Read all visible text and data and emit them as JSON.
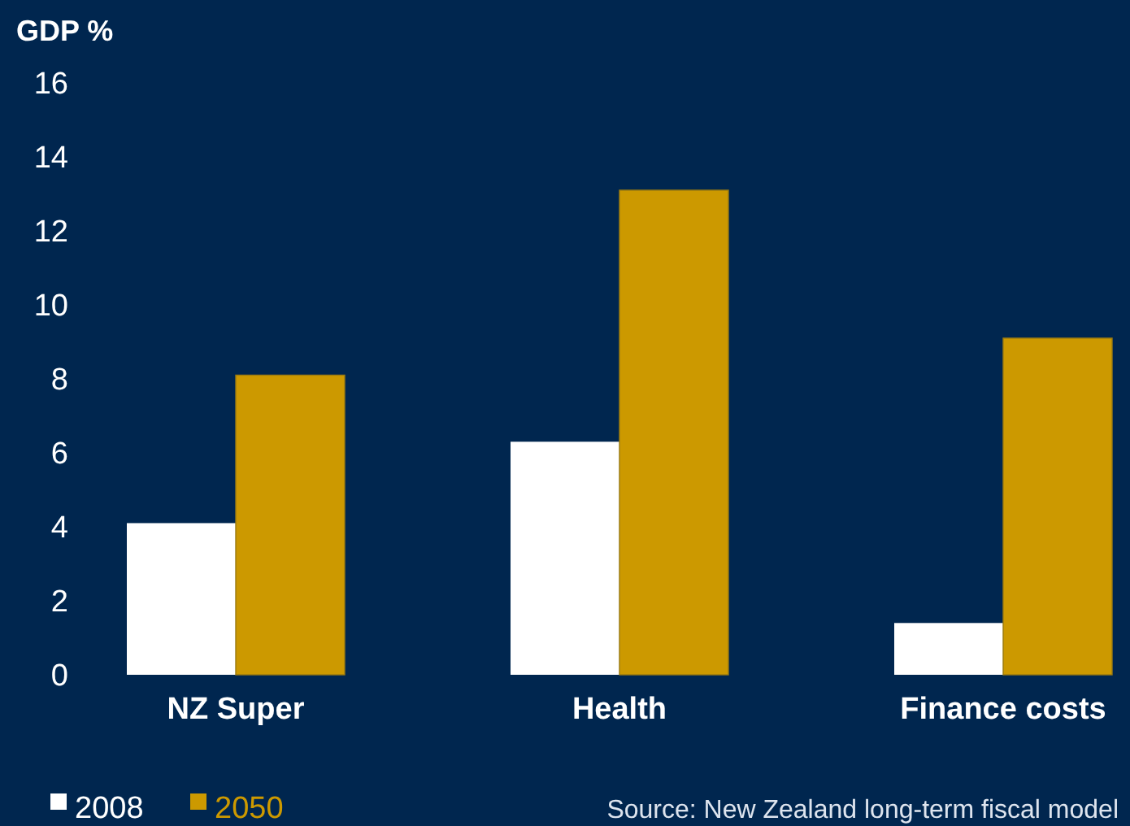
{
  "chart_data": {
    "type": "bar",
    "ylabel": "GDP %",
    "categories": [
      "NZ Super",
      "Health",
      "Finance costs"
    ],
    "series": [
      {
        "name": "2008",
        "color": "#ffffff",
        "values": [
          4.1,
          6.3,
          1.4
        ]
      },
      {
        "name": "2050",
        "color": "#cc9900",
        "values": [
          8.1,
          13.1,
          9.1
        ]
      }
    ],
    "ylim": [
      0,
      16
    ],
    "yticks": [
      0,
      2,
      4,
      6,
      8,
      10,
      12,
      14,
      16
    ],
    "legend": "bottom left",
    "annotations": [
      "Source: New Zealand long-term fiscal model"
    ]
  }
}
